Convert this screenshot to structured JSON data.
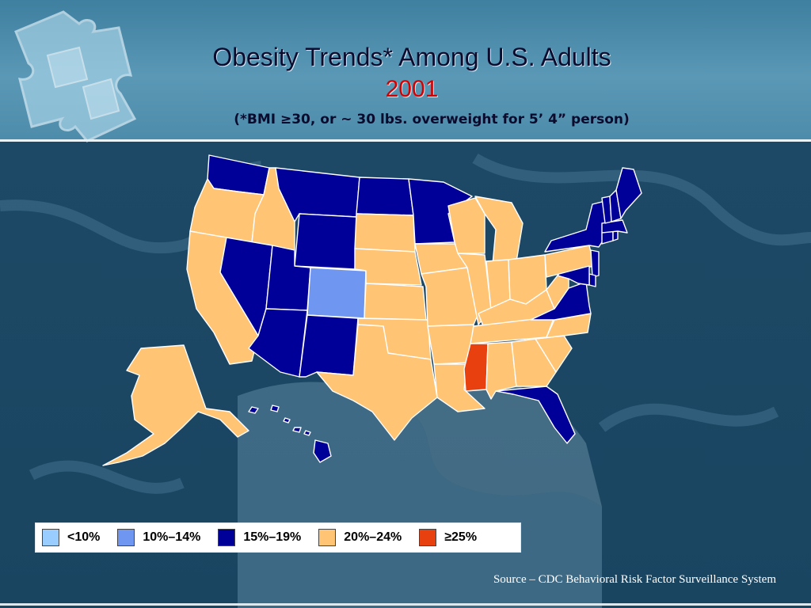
{
  "header": {
    "title": "Obesity Trends* Among U.S. Adults",
    "year": "2001",
    "subtitle": "(*BMI ≥30, or ~ 30 lbs. overweight for 5’ 4” person)"
  },
  "colors": {
    "lt10": "#99ccff",
    "c10_14": "#6f96f0",
    "c15_19": "#000099",
    "c20_24": "#ffc474",
    "gte25": "#e8400e"
  },
  "legend": [
    {
      "label": "<10%",
      "color": "#99ccff"
    },
    {
      "label": "10%–14%",
      "color": "#6f96f0"
    },
    {
      "label": "15%–19%",
      "color": "#000099"
    },
    {
      "label": "20%–24%",
      "color": "#ffc474"
    },
    {
      "label": "≥25%",
      "color": "#e8400e"
    }
  ],
  "states": {
    "WA": "15-19",
    "OR": "20-24",
    "CA": "20-24",
    "ID": "20-24",
    "NV": "15-19",
    "MT": "15-19",
    "WY": "15-19",
    "UT": "15-19",
    "AZ": "15-19",
    "CO": "10-14",
    "NM": "15-19",
    "ND": "15-19",
    "SD": "20-24",
    "NE": "20-24",
    "KS": "20-24",
    "OK": "20-24",
    "TX": "20-24",
    "MN": "15-19",
    "IA": "20-24",
    "MO": "20-24",
    "AR": "20-24",
    "LA": "20-24",
    "WI": "20-24",
    "IL": "20-24",
    "MI": "20-24",
    "IN": "20-24",
    "OH": "20-24",
    "KY": "20-24",
    "TN": "20-24",
    "MS": "25+",
    "AL": "20-24",
    "GA": "20-24",
    "FL": "15-19",
    "SC": "20-24",
    "NC": "20-24",
    "VA": "15-19",
    "WV": "20-24",
    "PA": "20-24",
    "NY": "15-19",
    "NJ": "15-19",
    "DE": "15-19",
    "MD": "15-19",
    "CT": "15-19",
    "RI": "15-19",
    "MA": "15-19",
    "VT": "15-19",
    "NH": "15-19",
    "ME": "15-19",
    "AK": "20-24",
    "HI": "15-19"
  },
  "source": "Source – CDC Behavioral Risk Factor Surveillance System"
}
